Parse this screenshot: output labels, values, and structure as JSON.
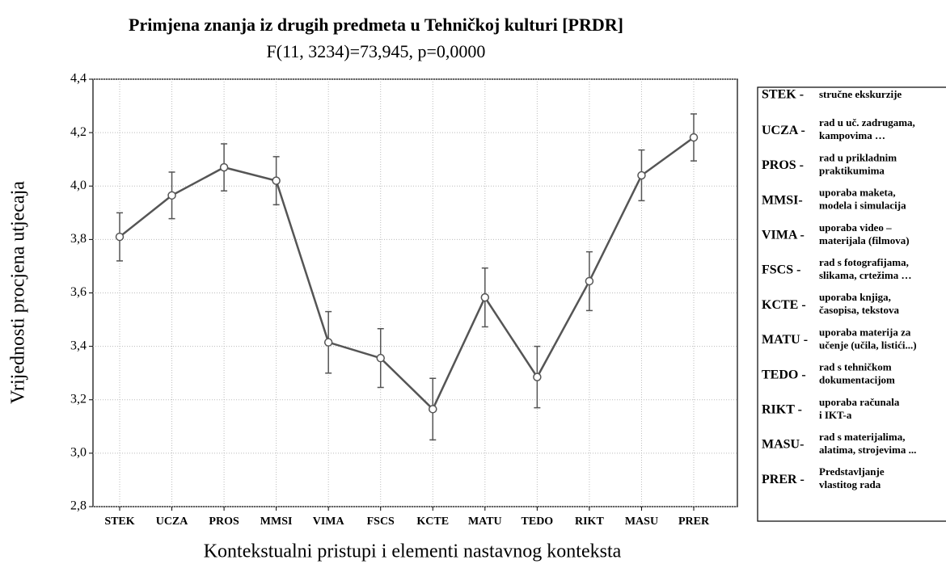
{
  "chart_data": {
    "type": "line",
    "title": "Primjena znanja iz drugih predmeta u Tehničkoj kulturi [PRDR]",
    "subtitle": "F(11, 3234)=73,945, p=0,0000",
    "x_label": "Kontekstualni pristupi i elementi nastavnog konteksta",
    "y_label": "Vrijednosti procjena utjecaja",
    "categories": [
      "STEK",
      "UCZA",
      "PROS",
      "MMSI",
      "VIMA",
      "FSCS",
      "KCTE",
      "MATU",
      "TEDO",
      "RIKT",
      "MASU",
      "PRER"
    ],
    "values": [
      3.81,
      3.965,
      4.07,
      4.02,
      3.415,
      3.356,
      3.165,
      3.583,
      3.285,
      3.644,
      4.04,
      4.182
    ],
    "errors": [
      0.09,
      0.087,
      0.088,
      0.09,
      0.115,
      0.11,
      0.115,
      0.11,
      0.115,
      0.11,
      0.095,
      0.088
    ],
    "color": "#555555",
    "ylim": [
      2.8,
      4.4
    ],
    "yticks": [
      {
        "value": 2.8,
        "label": "2,8"
      },
      {
        "value": 3.0,
        "label": "3,0"
      },
      {
        "value": 3.2,
        "label": "3,2"
      },
      {
        "value": 3.4,
        "label": "3,4"
      },
      {
        "value": 3.6,
        "label": "3,6"
      },
      {
        "value": 3.8,
        "label": "3,8"
      },
      {
        "value": 4.0,
        "label": "4,0"
      },
      {
        "value": 4.2,
        "label": "4,2"
      },
      {
        "value": 4.4,
        "label": "4,4"
      }
    ],
    "grid": true,
    "legend_notes": [
      {
        "code": "STEK -",
        "lines": [
          "stručne ekskurzije"
        ]
      },
      {
        "code": "UCZA -",
        "lines": [
          "rad u uč. zadrugama,",
          "kampovima …"
        ]
      },
      {
        "code": "PROS -",
        "lines": [
          "rad u prikladnim",
          "praktikumima"
        ]
      },
      {
        "code": "MMSI-",
        "lines": [
          "uporaba maketa,",
          "modela i simulacija"
        ]
      },
      {
        "code": "VIMA -",
        "lines": [
          "uporaba video –",
          "materijala (filmova)"
        ]
      },
      {
        "code": "FSCS -",
        "lines": [
          "rad s fotografijama,",
          "slikama, crtežima …"
        ]
      },
      {
        "code": "KCTE -",
        "lines": [
          "uporaba knjiga,",
          "časopisa, tekstova"
        ]
      },
      {
        "code": "MATU -",
        "lines": [
          "uporaba materija za",
          "učenje (učila, listići...)"
        ]
      },
      {
        "code": "TEDO -",
        "lines": [
          "rad s tehničkom",
          "dokumentacijom"
        ]
      },
      {
        "code": "RIKT -",
        "lines": [
          "uporaba računala",
          "i IKT-a"
        ]
      },
      {
        "code": "MASU-",
        "lines": [
          "rad s materijalima,",
          "alatima, strojevima ..."
        ]
      },
      {
        "code": "PRER -",
        "lines": [
          "Predstavljanje",
          "vlastitog rada"
        ]
      }
    ]
  }
}
